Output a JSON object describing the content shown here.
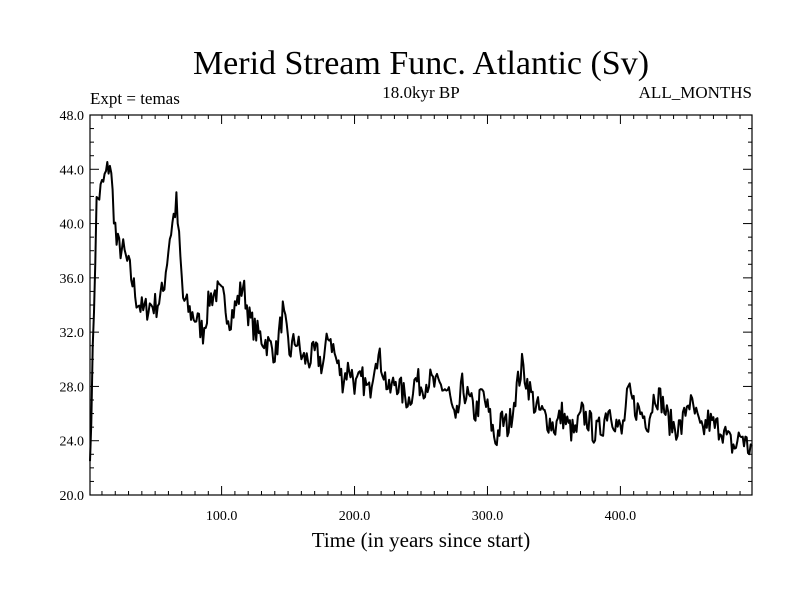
{
  "chart_data": {
    "type": "line",
    "title": "Merid Stream Func. Atlantic (Sv)",
    "subtitle": "18.0kyr BP",
    "left_label": "Expt = temas",
    "right_label": "ALL_MONTHS",
    "xlabel": "Time (in years since start)",
    "ylabel": "",
    "xlim": [
      1,
      499
    ],
    "ylim": [
      20,
      48
    ],
    "x_ticks": [
      100,
      200,
      300,
      400
    ],
    "x_tick_labels": [
      "100.0",
      "200.0",
      "300.0",
      "400.0"
    ],
    "y_ticks": [
      20,
      24,
      28,
      32,
      36,
      40,
      44,
      48
    ],
    "y_tick_labels": [
      "20.0",
      "24.0",
      "28.0",
      "32.0",
      "36.0",
      "40.0",
      "44.0",
      "48.0"
    ],
    "grid": false,
    "series": [
      {
        "name": "Merid Stream Func. Atlantic",
        "x_start": 1,
        "x_step": 5,
        "values": [
          22.5,
          41.5,
          43.0,
          44.5,
          38.5,
          38.0,
          36.5,
          34.5,
          33.5,
          34.0,
          34.0,
          35.0,
          39.0,
          41.5,
          34.5,
          33.5,
          33.0,
          32.0,
          34.5,
          35.0,
          34.5,
          33.0,
          34.0,
          35.5,
          33.0,
          32.0,
          31.5,
          31.0,
          30.5,
          33.5,
          30.5,
          31.5,
          30.0,
          30.0,
          30.5,
          29.5,
          32.0,
          30.0,
          28.5,
          29.5,
          28.0,
          28.5,
          27.5,
          30.5,
          29.5,
          27.5,
          28.5,
          27.5,
          27.0,
          28.5,
          28.0,
          28.5,
          28.0,
          28.0,
          27.5,
          25.0,
          28.0,
          27.0,
          26.0,
          27.5,
          26.0,
          24.0,
          25.5,
          25.0,
          27.5,
          29.5,
          28.0,
          26.5,
          26.0,
          25.5,
          25.0,
          26.0,
          25.0,
          24.5,
          26.0,
          25.5,
          24.5,
          25.0,
          26.5,
          25.5,
          24.5,
          27.5,
          26.5,
          26.0,
          25.5,
          27.5,
          27.0,
          25.5,
          25.0,
          25.0,
          27.0,
          26.0,
          24.5,
          25.5,
          25.0,
          25.0,
          24.0,
          23.5,
          24.5,
          23.5
        ]
      }
    ]
  }
}
